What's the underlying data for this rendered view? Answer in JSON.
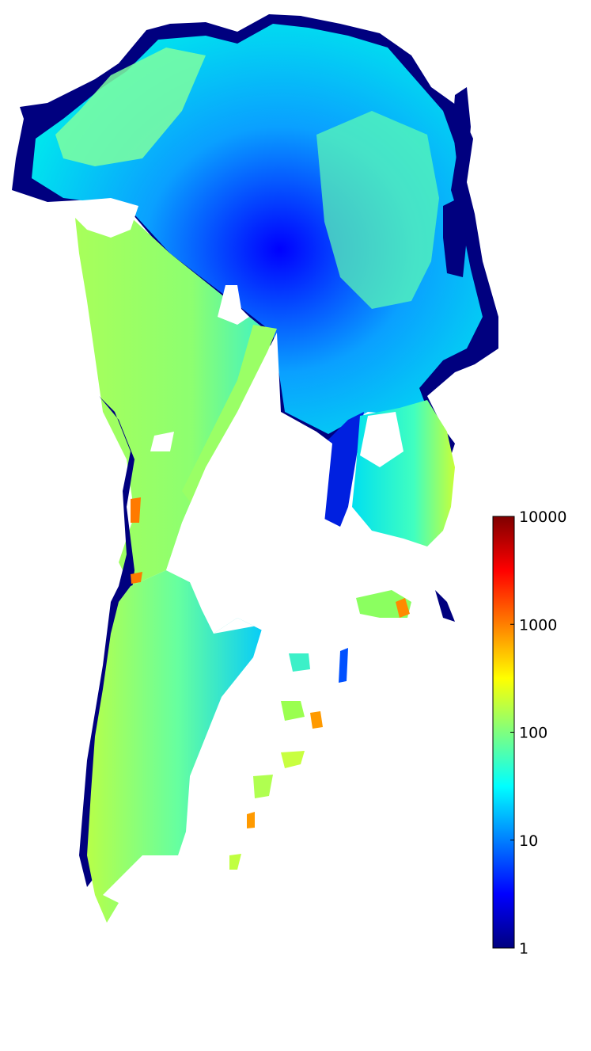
{
  "figure": {
    "type": "velocity-map",
    "subject": "ice surface velocity",
    "colormap": "jet",
    "background": "#ffffff"
  },
  "colorbar": {
    "scale": "log",
    "range": [
      1,
      10000
    ],
    "ticks": [
      {
        "value": 10000,
        "label": "10000"
      },
      {
        "value": 1000,
        "label": "1000"
      },
      {
        "value": 100,
        "label": "100"
      },
      {
        "value": 10,
        "label": "10"
      },
      {
        "value": 1,
        "label": "1"
      }
    ],
    "stops": [
      "#00007f",
      "#0000ff",
      "#007fff",
      "#00ffff",
      "#7fff7f",
      "#ffff00",
      "#ff7f00",
      "#ff0000",
      "#7f0000"
    ]
  },
  "colors": {
    "ice_outline": "#00007f",
    "fast_flow": "#0000ff",
    "moderate_flow": "#00c8ff",
    "slow_flow": "#9bff6a",
    "very_fast": "#ff4a00"
  }
}
